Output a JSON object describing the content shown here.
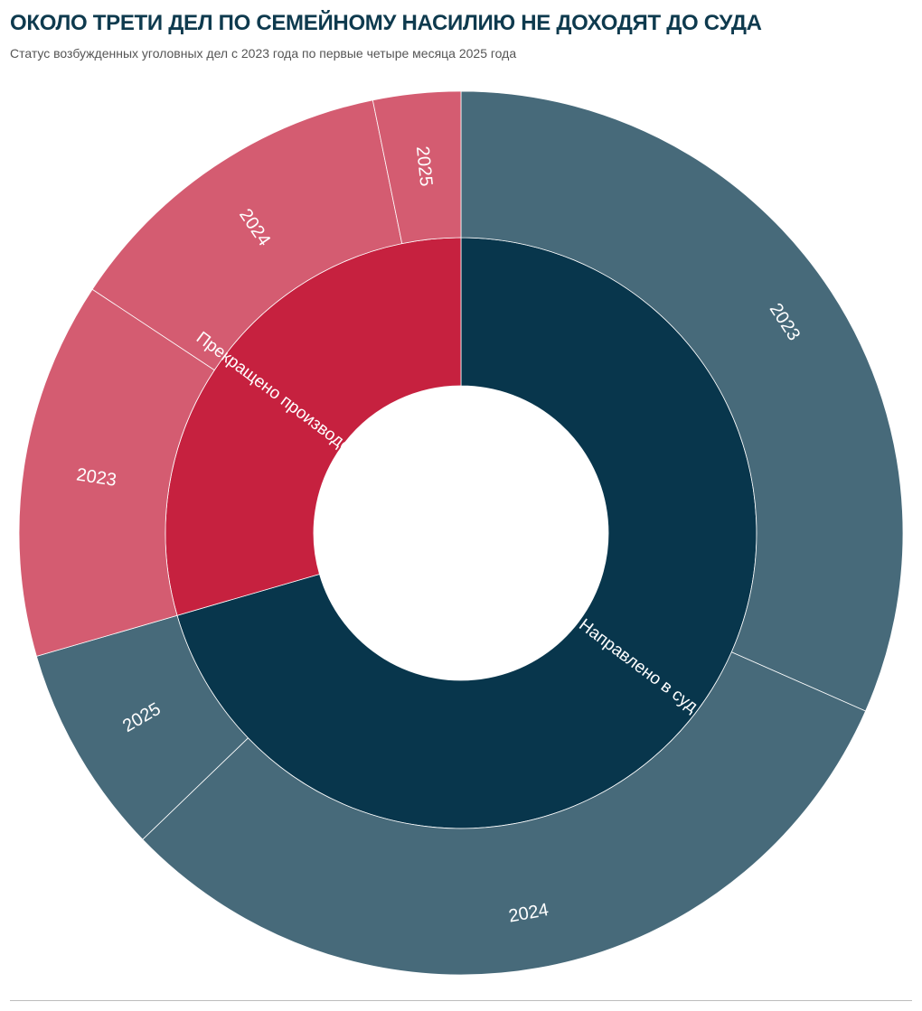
{
  "header": {
    "title": "ОКОЛО ТРЕТИ ДЕЛ ПО СЕМЕЙНОМУ НАСИЛИЮ НЕ ДОХОДЯТ ДО СУДА",
    "subtitle": "Статус возбужденных уголовных дел с 2023 года по первые четыре месяца 2025 года"
  },
  "chart_data": {
    "type": "sunburst",
    "title": "ОКОЛО ТРЕТИ ДЕЛ ПО СЕМЕЙНОМУ НАСИЛИЮ НЕ ДОХОДЯТ ДО СУДА",
    "subtitle": "Статус возбужденных уголовных дел с 2023 года по первые четыре месяца 2025 года",
    "unit": "share of cases (%)",
    "categories": [
      {
        "name": "Направлено в суд",
        "color": "#08364c",
        "child_color": "#476a7a",
        "value": 70.5,
        "children": [
          {
            "name": "2023",
            "value": 31.6
          },
          {
            "name": "2024",
            "value": 31.2
          },
          {
            "name": "2025",
            "value": 7.7
          }
        ]
      },
      {
        "name": "Прекращено производство",
        "color": "#c6213f",
        "child_color": "#d45c71",
        "value": 29.5,
        "children": [
          {
            "name": "2023",
            "value": 13.8
          },
          {
            "name": "2024",
            "value": 12.5
          },
          {
            "name": "2025",
            "value": 3.2
          }
        ]
      }
    ]
  }
}
